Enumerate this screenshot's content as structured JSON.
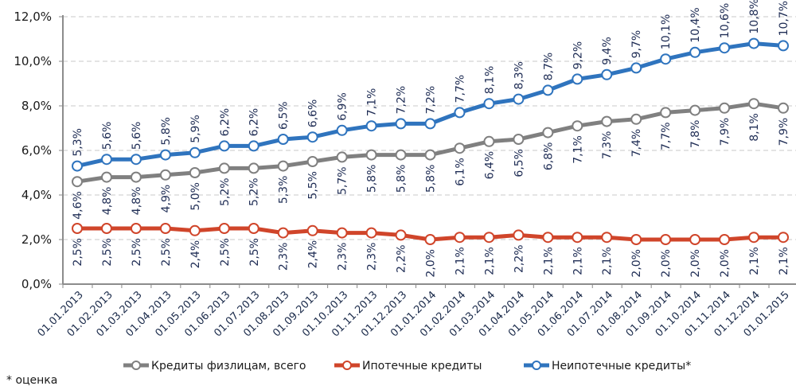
{
  "chart_data": {
    "type": "line",
    "title": "",
    "xlabel": "",
    "ylabel": "",
    "ylim": [
      0,
      12
    ],
    "y_ticks": [
      "0,0%",
      "2,0%",
      "4,0%",
      "6,0%",
      "8,0%",
      "10,0%",
      "12,0%"
    ],
    "y_tick_values": [
      0,
      2,
      4,
      6,
      8,
      10,
      12
    ],
    "grid": "horizontal dashed",
    "legend_position": "bottom",
    "categories": [
      "01.01.2013",
      "01.02.2013",
      "01.03.2013",
      "01.04.2013",
      "01.05.2013",
      "01.06.2013",
      "01.07.2013",
      "01.08.2013",
      "01.09.2013",
      "01.10.2013",
      "01.11.2013",
      "01.12.2013",
      "01.01.2014",
      "01.02.2014",
      "01.03.2014",
      "01.04.2014",
      "01.05.2014",
      "01.06.2014",
      "01.07.2014",
      "01.08.2014",
      "01.09.2014",
      "01.10.2014",
      "01.11.2014",
      "01.12.2014",
      "01.01.2015"
    ],
    "series": [
      {
        "name": "Кредиты физлицам, всего",
        "color": "#808080",
        "label_position": "below",
        "values": [
          4.6,
          4.8,
          4.8,
          4.9,
          5.0,
          5.2,
          5.2,
          5.3,
          5.5,
          5.7,
          5.8,
          5.8,
          5.8,
          6.1,
          6.4,
          6.5,
          6.8,
          7.1,
          7.3,
          7.4,
          7.7,
          7.8,
          7.9,
          8.1,
          7.9
        ],
        "labels": [
          "4,6%",
          "4,8%",
          "4,8%",
          "4,9%",
          "5,0%",
          "5,2%",
          "5,2%",
          "5,3%",
          "5,5%",
          "5,7%",
          "5,8%",
          "5,8%",
          "5,8%",
          "6,1%",
          "6,4%",
          "6,5%",
          "6,8%",
          "7,1%",
          "7,3%",
          "7,4%",
          "7,7%",
          "7,8%",
          "7,9%",
          "8,1%",
          "7,9%"
        ]
      },
      {
        "name": "Ипотечные кредиты",
        "color": "#d0452a",
        "label_position": "below",
        "values": [
          2.5,
          2.5,
          2.5,
          2.5,
          2.4,
          2.5,
          2.5,
          2.3,
          2.4,
          2.3,
          2.3,
          2.2,
          2.0,
          2.1,
          2.1,
          2.2,
          2.1,
          2.1,
          2.1,
          2.0,
          2.0,
          2.0,
          2.0,
          2.1,
          2.1
        ],
        "labels": [
          "2,5%",
          "2,5%",
          "2,5%",
          "2,5%",
          "2,4%",
          "2,5%",
          "2,5%",
          "2,3%",
          "2,4%",
          "2,3%",
          "2,3%",
          "2,2%",
          "2,0%",
          "2,1%",
          "2,1%",
          "2,2%",
          "2,1%",
          "2,1%",
          "2,1%",
          "2,0%",
          "2,0%",
          "2,0%",
          "2,0%",
          "2,1%",
          "2,1%"
        ]
      },
      {
        "name": "Неипотечные кредиты*",
        "color": "#2f74be",
        "label_position": "above",
        "values": [
          5.3,
          5.6,
          5.6,
          5.8,
          5.9,
          6.2,
          6.2,
          6.5,
          6.6,
          6.9,
          7.1,
          7.2,
          7.2,
          7.7,
          8.1,
          8.3,
          8.7,
          9.2,
          9.4,
          9.7,
          10.1,
          10.4,
          10.6,
          10.8,
          10.7
        ],
        "labels": [
          "5,3%",
          "5,6%",
          "5,6%",
          "5,8%",
          "5,9%",
          "6,2%",
          "6,2%",
          "6,5%",
          "6,6%",
          "6,9%",
          "7,1%",
          "7,2%",
          "7,2%",
          "7,7%",
          "8,1%",
          "8,3%",
          "8,7%",
          "9,2%",
          "9,4%",
          "9,7%",
          "10,1%",
          "10,4%",
          "10,6%",
          "10,8%",
          "10,7%"
        ]
      }
    ],
    "footnote": "* оценка"
  }
}
